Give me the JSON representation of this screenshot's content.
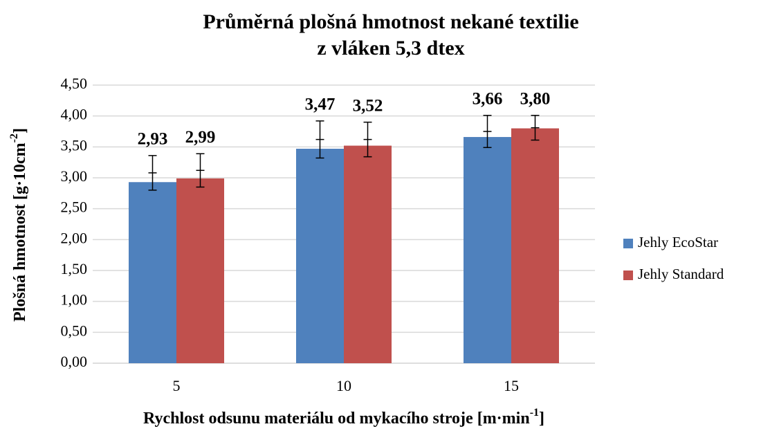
{
  "chart_data": {
    "type": "bar",
    "title": [
      "Průměrná plošná hmotnost nekané textilie",
      "z vláken 5,3 dtex"
    ],
    "y_label": {
      "text": "Plošná hmotnost  [g·10cm",
      "sup": "-2",
      "end": "]"
    },
    "x_label": {
      "text": "Rychlost odsunu materiálu od mykacího stroje [m·min",
      "sup": "-1",
      "end": "]"
    },
    "categories": [
      "5",
      "10",
      "15"
    ],
    "series": [
      {
        "name": "Jehly EcoStar",
        "color": "#4f81bd",
        "values": [
          2.93,
          3.47,
          3.66
        ],
        "value_labels": [
          "2,93",
          "3,47",
          "3,66"
        ],
        "error_bars": [
          {
            "center": 3.08,
            "error": 0.28
          },
          {
            "center": 3.62,
            "error": 0.3
          },
          {
            "center": 3.75,
            "error": 0.26
          }
        ]
      },
      {
        "name": "Jehly Standard",
        "color": "#c0504d",
        "values": [
          2.99,
          3.52,
          3.8
        ],
        "value_labels": [
          "2,99",
          "3,52",
          "3,80"
        ],
        "error_bars": [
          {
            "center": 3.12,
            "error": 0.27
          },
          {
            "center": 3.62,
            "error": 0.28
          },
          {
            "center": 3.81,
            "error": 0.2
          }
        ]
      }
    ],
    "ylim": [
      0,
      4.5
    ],
    "yticks": [
      {
        "value": 0,
        "label": "0,00"
      },
      {
        "value": 0.5,
        "label": "0,50"
      },
      {
        "value": 1,
        "label": "1,00"
      },
      {
        "value": 1.5,
        "label": "1,50"
      },
      {
        "value": 2,
        "label": "2,00"
      },
      {
        "value": 2.5,
        "label": "2,50"
      },
      {
        "value": 3,
        "label": "3,00"
      },
      {
        "value": 3.5,
        "label": "3,50"
      },
      {
        "value": 4,
        "label": "4,00"
      },
      {
        "value": 4.5,
        "label": "4,50"
      }
    ],
    "grid": true,
    "legend": "right"
  }
}
